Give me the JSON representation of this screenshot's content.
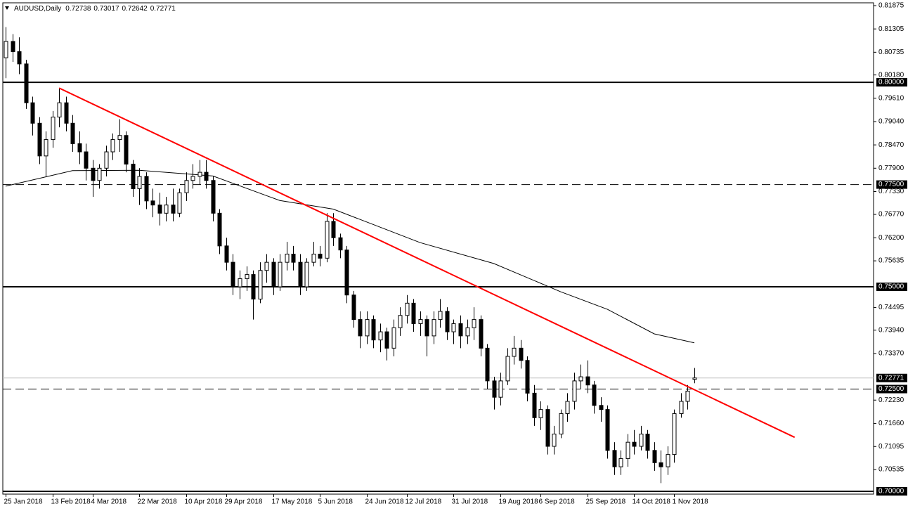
{
  "chart_data": {
    "type": "candlestick",
    "symbol": "AUDUSD,Daily",
    "categories": [
      "25 Jan 2018",
      null,
      null,
      null,
      null,
      null,
      null,
      "13 Feb 2018",
      null,
      null,
      null,
      null,
      null,
      "4 Mar 2018",
      null,
      null,
      null,
      null,
      null,
      null,
      "22 Mar 2018",
      null,
      null,
      null,
      null,
      null,
      null,
      "10 Apr 2018",
      null,
      null,
      null,
      null,
      null,
      "29 Apr 2018",
      null,
      null,
      null,
      null,
      null,
      null,
      "17 May 2018",
      null,
      null,
      null,
      null,
      null,
      null,
      "5 Jun 2018",
      null,
      null,
      null,
      null,
      null,
      null,
      "24 Jun 2018",
      null,
      null,
      null,
      null,
      null,
      "12 Jul 2018",
      null,
      null,
      null,
      null,
      null,
      null,
      "31 Jul 2018",
      null,
      null,
      null,
      null,
      null,
      null,
      "19 Aug 2018",
      null,
      null,
      null,
      null,
      null,
      "6 Sep 2018",
      null,
      null,
      null,
      null,
      null,
      null,
      "25 Sep 2018",
      null,
      null,
      null,
      null,
      null,
      null,
      "14 Oct 2018",
      null,
      null,
      null,
      null,
      null,
      "1 Nov 2018",
      null,
      null,
      null
    ],
    "ohlc": [
      [
        0.806,
        0.8135,
        0.801,
        0.81
      ],
      [
        0.81,
        0.8118,
        0.805,
        0.8075
      ],
      [
        0.8075,
        0.811,
        0.802,
        0.8045
      ],
      [
        0.8045,
        0.8055,
        0.7935,
        0.795
      ],
      [
        0.795,
        0.7965,
        0.787,
        0.79
      ],
      [
        0.79,
        0.7915,
        0.78,
        0.782
      ],
      [
        0.782,
        0.788,
        0.777,
        0.786
      ],
      [
        0.786,
        0.793,
        0.784,
        0.7915
      ],
      [
        0.7915,
        0.7985,
        0.789,
        0.795
      ],
      [
        0.795,
        0.7965,
        0.788,
        0.79
      ],
      [
        0.79,
        0.792,
        0.783,
        0.785
      ],
      [
        0.785,
        0.788,
        0.78,
        0.783
      ],
      [
        0.783,
        0.785,
        0.776,
        0.779
      ],
      [
        0.779,
        0.781,
        0.772,
        0.776
      ],
      [
        0.776,
        0.78,
        0.774,
        0.779
      ],
      [
        0.779,
        0.7845,
        0.777,
        0.783
      ],
      [
        0.783,
        0.7875,
        0.781,
        0.786
      ],
      [
        0.786,
        0.791,
        0.783,
        0.787
      ],
      [
        0.787,
        0.788,
        0.778,
        0.78
      ],
      [
        0.78,
        0.781,
        0.772,
        0.774
      ],
      [
        0.774,
        0.779,
        0.77,
        0.777
      ],
      [
        0.777,
        0.778,
        0.769,
        0.771
      ],
      [
        0.771,
        0.774,
        0.767,
        0.77
      ],
      [
        0.77,
        0.773,
        0.765,
        0.768
      ],
      [
        0.768,
        0.772,
        0.766,
        0.77
      ],
      [
        0.77,
        0.774,
        0.766,
        0.768
      ],
      [
        0.768,
        0.774,
        0.767,
        0.773
      ],
      [
        0.773,
        0.778,
        0.771,
        0.776
      ],
      [
        0.776,
        0.78,
        0.774,
        0.777
      ],
      [
        0.777,
        0.781,
        0.775,
        0.778
      ],
      [
        0.778,
        0.781,
        0.774,
        0.776
      ],
      [
        0.776,
        0.777,
        0.766,
        0.768
      ],
      [
        0.768,
        0.769,
        0.758,
        0.76
      ],
      [
        0.76,
        0.762,
        0.754,
        0.756
      ],
      [
        0.756,
        0.758,
        0.748,
        0.75
      ],
      [
        0.75,
        0.754,
        0.747,
        0.752
      ],
      [
        0.752,
        0.755,
        0.749,
        0.753
      ],
      [
        0.753,
        0.754,
        0.742,
        0.747
      ],
      [
        0.747,
        0.756,
        0.746,
        0.754
      ],
      [
        0.754,
        0.758,
        0.751,
        0.756
      ],
      [
        0.756,
        0.757,
        0.748,
        0.75
      ],
      [
        0.75,
        0.758,
        0.749,
        0.756
      ],
      [
        0.756,
        0.761,
        0.754,
        0.758
      ],
      [
        0.758,
        0.76,
        0.754,
        0.756
      ],
      [
        0.756,
        0.758,
        0.748,
        0.75
      ],
      [
        0.75,
        0.757,
        0.749,
        0.756
      ],
      [
        0.756,
        0.761,
        0.755,
        0.758
      ],
      [
        0.758,
        0.76,
        0.755,
        0.757
      ],
      [
        0.757,
        0.768,
        0.756,
        0.766
      ],
      [
        0.766,
        0.768,
        0.76,
        0.762
      ],
      [
        0.762,
        0.763,
        0.757,
        0.759
      ],
      [
        0.759,
        0.76,
        0.746,
        0.748
      ],
      [
        0.748,
        0.749,
        0.74,
        0.742
      ],
      [
        0.742,
        0.744,
        0.735,
        0.738
      ],
      [
        0.738,
        0.744,
        0.736,
        0.742
      ],
      [
        0.742,
        0.743,
        0.735,
        0.737
      ],
      [
        0.737,
        0.741,
        0.734,
        0.739
      ],
      [
        0.739,
        0.74,
        0.732,
        0.735
      ],
      [
        0.735,
        0.742,
        0.733,
        0.74
      ],
      [
        0.74,
        0.745,
        0.738,
        0.743
      ],
      [
        0.743,
        0.748,
        0.741,
        0.746
      ],
      [
        0.746,
        0.747,
        0.739,
        0.741
      ],
      [
        0.741,
        0.744,
        0.738,
        0.742
      ],
      [
        0.742,
        0.743,
        0.733,
        0.738
      ],
      [
        0.738,
        0.744,
        0.736,
        0.742
      ],
      [
        0.742,
        0.747,
        0.74,
        0.744
      ],
      [
        0.744,
        0.745,
        0.737,
        0.739
      ],
      [
        0.739,
        0.742,
        0.736,
        0.741
      ],
      [
        0.741,
        0.743,
        0.735,
        0.738
      ],
      [
        0.738,
        0.742,
        0.736,
        0.74
      ],
      [
        0.74,
        0.745,
        0.737,
        0.742
      ],
      [
        0.742,
        0.743,
        0.733,
        0.735
      ],
      [
        0.735,
        0.736,
        0.725,
        0.727
      ],
      [
        0.727,
        0.728,
        0.72,
        0.723
      ],
      [
        0.723,
        0.729,
        0.721,
        0.727
      ],
      [
        0.727,
        0.735,
        0.726,
        0.733
      ],
      [
        0.733,
        0.738,
        0.731,
        0.735
      ],
      [
        0.735,
        0.737,
        0.73,
        0.732
      ],
      [
        0.732,
        0.733,
        0.722,
        0.724
      ],
      [
        0.724,
        0.726,
        0.716,
        0.718
      ],
      [
        0.718,
        0.722,
        0.715,
        0.72
      ],
      [
        0.72,
        0.721,
        0.709,
        0.711
      ],
      [
        0.711,
        0.716,
        0.709,
        0.714
      ],
      [
        0.714,
        0.72,
        0.713,
        0.719
      ],
      [
        0.719,
        0.724,
        0.717,
        0.722
      ],
      [
        0.722,
        0.729,
        0.72,
        0.727
      ],
      [
        0.727,
        0.731,
        0.725,
        0.728
      ],
      [
        0.728,
        0.732,
        0.724,
        0.726
      ],
      [
        0.726,
        0.727,
        0.719,
        0.721
      ],
      [
        0.721,
        0.723,
        0.717,
        0.72
      ],
      [
        0.72,
        0.721,
        0.708,
        0.71
      ],
      [
        0.71,
        0.712,
        0.704,
        0.706
      ],
      [
        0.706,
        0.71,
        0.704,
        0.708
      ],
      [
        0.708,
        0.714,
        0.706,
        0.712
      ],
      [
        0.712,
        0.715,
        0.709,
        0.711
      ],
      [
        0.711,
        0.716,
        0.71,
        0.714
      ],
      [
        0.714,
        0.715,
        0.708,
        0.71
      ],
      [
        0.71,
        0.712,
        0.705,
        0.707
      ],
      [
        0.707,
        0.71,
        0.702,
        0.706
      ],
      [
        0.706,
        0.711,
        0.704,
        0.709
      ],
      [
        0.709,
        0.72,
        0.707,
        0.719
      ],
      [
        0.719,
        0.724,
        0.718,
        0.722
      ],
      [
        0.722,
        0.726,
        0.72,
        0.7245
      ],
      [
        0.72738,
        0.73017,
        0.72642,
        0.72771
      ]
    ],
    "bull_color": "#ffffff",
    "bear_color": "#000000",
    "outline_color": "#000000",
    "ma": {
      "x": [
        0,
        10,
        20,
        31,
        41,
        49,
        62,
        73,
        83,
        90,
        97,
        103
      ],
      "values": [
        0.7746,
        0.7784,
        0.7785,
        0.7771,
        0.7711,
        0.769,
        0.7608,
        0.7557,
        0.7488,
        0.7445,
        0.7385,
        0.7363
      ],
      "color": "#000000"
    },
    "trendline": {
      "x": [
        8,
        118
      ],
      "values": [
        0.7986,
        0.7132
      ],
      "color": "#ff0000"
    },
    "levels": [
      {
        "value": 0.8,
        "label": "0.80000",
        "style": "solid"
      },
      {
        "value": 0.775,
        "label": "0.77500",
        "style": "dashed"
      },
      {
        "value": 0.75,
        "label": "0.75000",
        "style": "solid"
      },
      {
        "value": 0.725,
        "label": "0.72500",
        "style": "dashed"
      },
      {
        "value": 0.7,
        "label": "0.70000",
        "style": "solid"
      }
    ],
    "price_line": {
      "value": 0.72771,
      "label": "0.72771",
      "color": "#c0c0c0"
    },
    "ylim": [
      0.7,
      0.81875
    ],
    "yticks": [
      {
        "value": 0.81875,
        "label": "0.81875"
      },
      {
        "value": 0.81305,
        "label": "0.81305"
      },
      {
        "value": 0.80735,
        "label": "0.80735"
      },
      {
        "value": 0.8018,
        "label": "0.80180"
      },
      {
        "value": 0.7961,
        "label": "0.79610"
      },
      {
        "value": 0.7904,
        "label": "0.79040"
      },
      {
        "value": 0.7847,
        "label": "0.78470"
      },
      {
        "value": 0.779,
        "label": "0.77900"
      },
      {
        "value": 0.7733,
        "label": "0.77330"
      },
      {
        "value": 0.7677,
        "label": "0.76770"
      },
      {
        "value": 0.762,
        "label": "0.76200"
      },
      {
        "value": 0.75635,
        "label": "0.75635"
      },
      {
        "value": 0.74495,
        "label": "0.74495"
      },
      {
        "value": 0.7394,
        "label": "0.73940"
      },
      {
        "value": 0.7337,
        "label": "0.73370"
      },
      {
        "value": 0.7223,
        "label": "0.72230"
      },
      {
        "value": 0.7166,
        "label": "0.71660"
      },
      {
        "value": 0.71095,
        "label": "0.71095"
      },
      {
        "value": 0.70535,
        "label": "0.70535"
      }
    ]
  }
}
